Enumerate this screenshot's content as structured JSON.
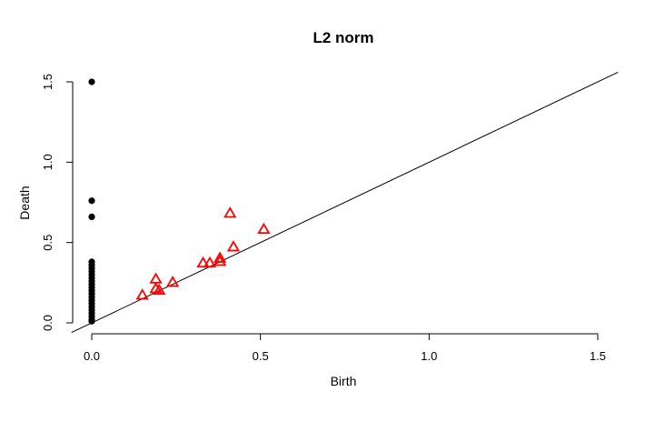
{
  "chart_data": {
    "type": "scatter",
    "title": "L2 norm",
    "xlabel": "Birth",
    "ylabel": "Death",
    "xlim": [
      0,
      1.5
    ],
    "ylim": [
      0,
      1.5
    ],
    "xticks": [
      "0.0",
      "0.5",
      "1.0",
      "1.5"
    ],
    "yticks": [
      "0.0",
      "0.5",
      "1.0",
      "1.5"
    ],
    "grid": false,
    "diagonal": true,
    "series": [
      {
        "marker": "filled-circle",
        "color": "#000000",
        "points": [
          [
            0,
            1.5
          ],
          [
            0,
            0.76
          ],
          [
            0,
            0.66
          ],
          [
            0,
            0.38
          ],
          [
            0,
            0.36
          ],
          [
            0,
            0.34
          ],
          [
            0,
            0.32
          ],
          [
            0,
            0.3
          ],
          [
            0,
            0.28
          ],
          [
            0,
            0.26
          ],
          [
            0,
            0.24
          ],
          [
            0,
            0.22
          ],
          [
            0,
            0.2
          ],
          [
            0,
            0.18
          ],
          [
            0,
            0.16
          ],
          [
            0,
            0.14
          ],
          [
            0,
            0.12
          ],
          [
            0,
            0.1
          ],
          [
            0,
            0.08
          ],
          [
            0,
            0.06
          ],
          [
            0,
            0.04
          ],
          [
            0,
            0.02
          ],
          [
            0,
            0.01
          ]
        ]
      },
      {
        "marker": "open-triangle",
        "color": "#ff0000",
        "points": [
          [
            0.15,
            0.17
          ],
          [
            0.19,
            0.21
          ],
          [
            0.2,
            0.2
          ],
          [
            0.19,
            0.27
          ],
          [
            0.24,
            0.25
          ],
          [
            0.33,
            0.37
          ],
          [
            0.35,
            0.37
          ],
          [
            0.38,
            0.38
          ],
          [
            0.38,
            0.4
          ],
          [
            0.42,
            0.47
          ],
          [
            0.41,
            0.68
          ],
          [
            0.51,
            0.58
          ]
        ]
      }
    ]
  }
}
